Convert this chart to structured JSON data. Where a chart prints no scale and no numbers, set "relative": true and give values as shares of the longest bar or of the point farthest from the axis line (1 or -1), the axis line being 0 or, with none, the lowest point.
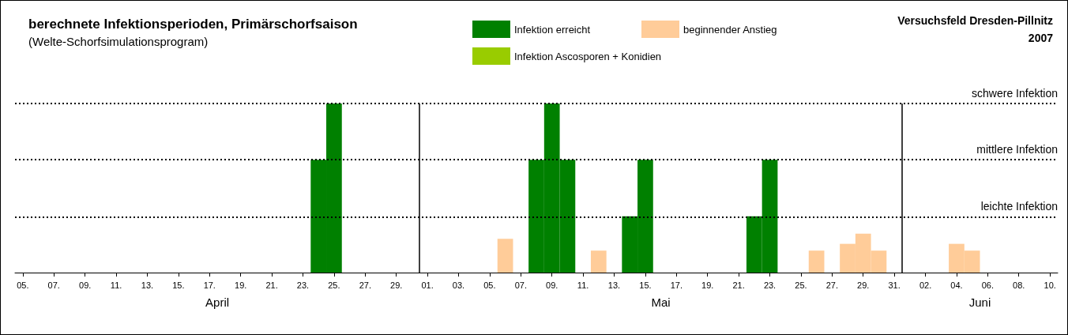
{
  "chart_data": {
    "type": "bar",
    "title": "berechnete Infektionsperioden, Primärschorfsaison",
    "subtitle": "(Welte-Schorfsimulationsprogram)",
    "relative": true,
    "legend": "top",
    "tick_labels": "x",
    "x": [
      "2007-04-24",
      "2007-04-25",
      "2007-05-06",
      "2007-05-08",
      "2007-05-09",
      "2007-05-10",
      "2007-05-12",
      "2007-05-14",
      "2007-05-15",
      "2007-05-22",
      "2007-05-23",
      "2007-05-26",
      "2007-05-28",
      "2007-05-29",
      "2007-05-30",
      "2007-06-04",
      "2007-06-05"
    ],
    "xlim": [
      "2007-04-04T12:00",
      "2007-06-10T12:00"
    ],
    "xticks": [
      {
        "value": "2007-04-05",
        "label": "05."
      },
      {
        "value": "2007-04-07",
        "label": "07."
      },
      {
        "value": "2007-04-09",
        "label": "09."
      },
      {
        "value": "2007-04-11",
        "label": "11."
      },
      {
        "value": "2007-04-13",
        "label": "13."
      },
      {
        "value": "2007-04-15",
        "label": "15."
      },
      {
        "value": "2007-04-17",
        "label": "17."
      },
      {
        "value": "2007-04-19",
        "label": "19."
      },
      {
        "value": "2007-04-21",
        "label": "21."
      },
      {
        "value": "2007-04-23",
        "label": "23."
      },
      {
        "value": "2007-04-25",
        "label": "25."
      },
      {
        "value": "2007-04-27",
        "label": "27."
      },
      {
        "value": "2007-04-29",
        "label": "29."
      },
      {
        "value": "2007-05-01",
        "label": "01."
      },
      {
        "value": "2007-05-03",
        "label": "03."
      },
      {
        "value": "2007-05-05",
        "label": "05."
      },
      {
        "value": "2007-05-07",
        "label": "07."
      },
      {
        "value": "2007-05-09",
        "label": "09."
      },
      {
        "value": "2007-05-11",
        "label": "11."
      },
      {
        "value": "2007-05-13",
        "label": "13."
      },
      {
        "value": "2007-05-15",
        "label": "15."
      },
      {
        "value": "2007-05-17",
        "label": "17."
      },
      {
        "value": "2007-05-19",
        "label": "19."
      },
      {
        "value": "2007-05-21",
        "label": "21."
      },
      {
        "value": "2007-05-23",
        "label": "23."
      },
      {
        "value": "2007-05-25",
        "label": "25."
      },
      {
        "value": "2007-05-27",
        "label": "27."
      },
      {
        "value": "2007-05-29",
        "label": "29."
      },
      {
        "value": "2007-05-31",
        "label": "31."
      },
      {
        "value": "2007-06-02",
        "label": "02."
      },
      {
        "value": "2007-06-04",
        "label": "04."
      },
      {
        "value": "2007-06-06",
        "label": "06."
      },
      {
        "value": "2007-06-08",
        "label": "08."
      },
      {
        "value": "2007-06-10",
        "label": "10."
      }
    ],
    "series": [
      {
        "name": "Infektion erreicht",
        "color": "#008000",
        "values": [
          0.667,
          1,
          null,
          0.667,
          1,
          0.667,
          null,
          0.333,
          0.667,
          0.333,
          0.667,
          null,
          null,
          null,
          null,
          null,
          null
        ]
      },
      {
        "name": "Infektion Ascosporen + Konidien",
        "color": "#99cc00",
        "values": [
          null,
          null,
          null,
          null,
          null,
          null,
          null,
          null,
          null,
          null,
          null,
          null,
          null,
          null,
          null,
          null,
          null
        ]
      },
      {
        "name": "beginnender Anstieg",
        "color": "#ffcc99",
        "values": [
          null,
          null,
          0.2,
          null,
          null,
          null,
          0.13,
          null,
          null,
          null,
          null,
          0.13,
          0.17,
          0.23,
          0.13,
          0.17,
          0.13
        ]
      }
    ],
    "ref_lines": [
      {
        "axis": "y",
        "value": 1,
        "label": "schwere Infektion",
        "line_style": "dotted",
        "color": "#000000"
      },
      {
        "axis": "y",
        "value": 0.667,
        "label": "mittlere Infektion",
        "line_style": "dotted",
        "color": "#000000"
      },
      {
        "axis": "y",
        "value": 0.333,
        "label": "leichte Infektion",
        "line_style": "dotted",
        "color": "#000000"
      },
      {
        "axis": "x",
        "value": "2007-04-30T12:00",
        "label": null,
        "line_style": "solid",
        "color": "#000000"
      },
      {
        "axis": "x",
        "value": "2007-05-31T12:00",
        "label": null,
        "line_style": "solid",
        "color": "#000000"
      }
    ],
    "annotations": [
      "Versuchsfeld Dresden-Pillnitz",
      "2007",
      "April",
      "Mai",
      "Juni"
    ]
  }
}
